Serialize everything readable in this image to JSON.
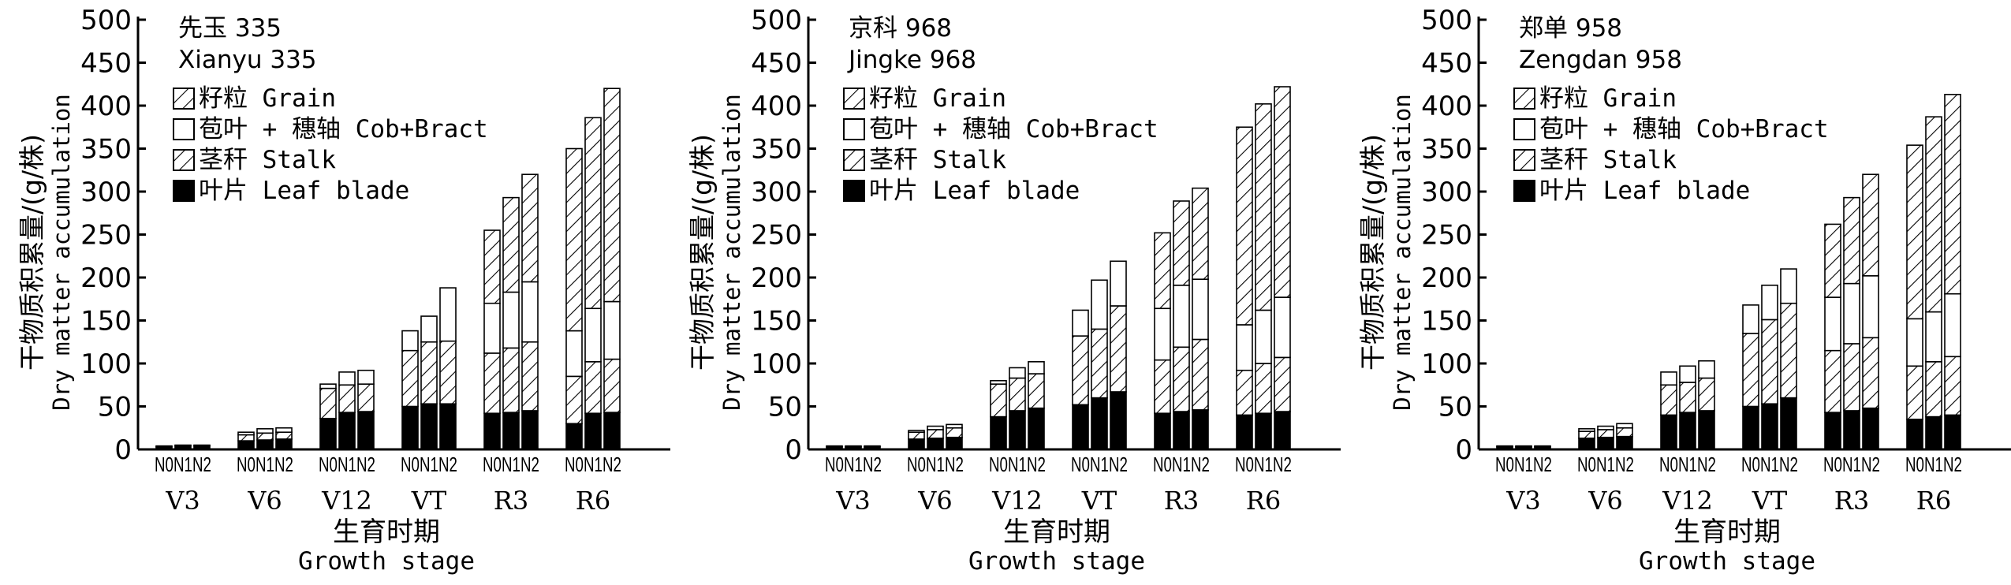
{
  "chart_data": [
    {
      "type": "bar",
      "stacked": true,
      "title_zh": "先玉 335",
      "title_en": "Xianyu 335",
      "ylabel_zh": "干物质积累量/(g/株)",
      "ylabel_en": "Dry matter accumulation",
      "xlabel_zh": "生育时期",
      "xlabel_en": "Growth stage",
      "ylim": [
        0,
        500
      ],
      "yticks": [
        0,
        50,
        100,
        150,
        200,
        250,
        300,
        350,
        400,
        450,
        500
      ],
      "stages": [
        "V3",
        "V6",
        "V12",
        "VT",
        "R3",
        "R6"
      ],
      "treatments": [
        "N0",
        "N1",
        "N2"
      ],
      "legend": [
        {
          "key": "grain",
          "label": "籽粒 Grain",
          "pattern": "hatch"
        },
        {
          "key": "cob",
          "label": "苞叶 + 穗轴 Cob+Bract",
          "pattern": "white"
        },
        {
          "key": "stalk",
          "label": "茎秆 Stalk",
          "pattern": "hatch"
        },
        {
          "key": "leaf",
          "label": "叶片 Leaf blade",
          "pattern": "black"
        }
      ],
      "series": [
        {
          "name": "叶片 Leaf blade",
          "key": "leaf",
          "values": [
            [
              3,
              4,
              4
            ],
            [
              10,
              11,
              12
            ],
            [
              36,
              43,
              44
            ],
            [
              50,
              53,
              53
            ],
            [
              42,
              43,
              45
            ],
            [
              30,
              42,
              43
            ]
          ]
        },
        {
          "name": "茎秆 Stalk",
          "key": "stalk",
          "values": [
            [
              1,
              1,
              1
            ],
            [
              7,
              8,
              8
            ],
            [
              35,
              32,
              32
            ],
            [
              65,
              72,
              73
            ],
            [
              70,
              75,
              80
            ],
            [
              55,
              60,
              62
            ]
          ]
        },
        {
          "name": "苞叶 + 穗轴 Cob+Bract",
          "key": "cob",
          "values": [
            [
              0,
              0,
              0
            ],
            [
              3,
              5,
              5
            ],
            [
              5,
              15,
              16
            ],
            [
              23,
              30,
              62
            ],
            [
              58,
              65,
              70
            ],
            [
              53,
              62,
              67
            ]
          ]
        },
        {
          "name": "籽粒 Grain",
          "key": "grain",
          "values": [
            [
              0,
              0,
              0
            ],
            [
              0,
              0,
              0
            ],
            [
              0,
              0,
              0
            ],
            [
              0,
              0,
              0
            ],
            [
              85,
              110,
              125
            ],
            [
              212,
              222,
              248
            ]
          ]
        }
      ]
    },
    {
      "type": "bar",
      "stacked": true,
      "title_zh": "京科 968",
      "title_en": "Jingke 968",
      "ylabel_zh": "干物质积累量/(g/株)",
      "ylabel_en": "Dry matter accumulation",
      "xlabel_zh": "生育时期",
      "xlabel_en": "Growth stage",
      "ylim": [
        0,
        500
      ],
      "yticks": [
        0,
        50,
        100,
        150,
        200,
        250,
        300,
        350,
        400,
        450,
        500
      ],
      "stages": [
        "V3",
        "V6",
        "V12",
        "VT",
        "R3",
        "R6"
      ],
      "treatments": [
        "N0",
        "N1",
        "N2"
      ],
      "legend": [
        {
          "key": "grain",
          "label": "籽粒 Grain",
          "pattern": "hatch"
        },
        {
          "key": "cob",
          "label": "苞叶 + 穗轴 Cob+Bract",
          "pattern": "white"
        },
        {
          "key": "stalk",
          "label": "茎秆 Stalk",
          "pattern": "hatch"
        },
        {
          "key": "leaf",
          "label": "叶片 Leaf blade",
          "pattern": "black"
        }
      ],
      "series": [
        {
          "name": "叶片 Leaf blade",
          "key": "leaf",
          "values": [
            [
              3,
              3,
              3
            ],
            [
              12,
              13,
              14
            ],
            [
              38,
              45,
              48
            ],
            [
              52,
              60,
              67
            ],
            [
              42,
              44,
              46
            ],
            [
              40,
              42,
              44
            ]
          ]
        },
        {
          "name": "茎秆 Stalk",
          "key": "stalk",
          "values": [
            [
              1,
              1,
              1
            ],
            [
              8,
              10,
              11
            ],
            [
              38,
              38,
              40
            ],
            [
              80,
              80,
              100
            ],
            [
              62,
              75,
              82
            ],
            [
              52,
              58,
              63
            ]
          ]
        },
        {
          "name": "苞叶 + 穗轴 Cob+Bract",
          "key": "cob",
          "values": [
            [
              0,
              0,
              0
            ],
            [
              2,
              4,
              4
            ],
            [
              4,
              12,
              14
            ],
            [
              30,
              57,
              52
            ],
            [
              60,
              72,
              70
            ],
            [
              53,
              62,
              70
            ]
          ]
        },
        {
          "name": "籽粒 Grain",
          "key": "grain",
          "values": [
            [
              0,
              0,
              0
            ],
            [
              0,
              0,
              0
            ],
            [
              0,
              0,
              0
            ],
            [
              0,
              0,
              0
            ],
            [
              88,
              98,
              106
            ],
            [
              230,
              240,
              245
            ]
          ]
        }
      ]
    },
    {
      "type": "bar",
      "stacked": true,
      "title_zh": "郑单 958",
      "title_en": "Zengdan 958",
      "ylabel_zh": "干物质积累量/(g/株)",
      "ylabel_en": "Dry matter accumulation",
      "xlabel_zh": "生育时期",
      "xlabel_en": "Growth stage",
      "ylim": [
        0,
        500
      ],
      "yticks": [
        0,
        50,
        100,
        150,
        200,
        250,
        300,
        350,
        400,
        450,
        500
      ],
      "stages": [
        "V3",
        "V6",
        "V12",
        "VT",
        "R3",
        "R6"
      ],
      "treatments": [
        "N0",
        "N1",
        "N2"
      ],
      "legend": [
        {
          "key": "grain",
          "label": "籽粒 Grain",
          "pattern": "hatch"
        },
        {
          "key": "cob",
          "label": "苞叶 + 穗轴 Cob+Bract",
          "pattern": "white"
        },
        {
          "key": "stalk",
          "label": "茎秆 Stalk",
          "pattern": "hatch"
        },
        {
          "key": "leaf",
          "label": "叶片 Leaf blade",
          "pattern": "black"
        }
      ],
      "series": [
        {
          "name": "叶片 Leaf blade",
          "key": "leaf",
          "values": [
            [
              3,
              3,
              3
            ],
            [
              13,
              14,
              15
            ],
            [
              40,
              43,
              45
            ],
            [
              50,
              53,
              60
            ],
            [
              43,
              45,
              48
            ],
            [
              35,
              38,
              40
            ]
          ]
        },
        {
          "name": "茎秆 Stalk",
          "key": "stalk",
          "values": [
            [
              1,
              1,
              1
            ],
            [
              8,
              9,
              10
            ],
            [
              35,
              35,
              38
            ],
            [
              85,
              98,
              110
            ],
            [
              72,
              78,
              82
            ],
            [
              62,
              64,
              68
            ]
          ]
        },
        {
          "name": "苞叶 + 穗轴 Cob+Bract",
          "key": "cob",
          "values": [
            [
              0,
              0,
              0
            ],
            [
              3,
              4,
              5
            ],
            [
              15,
              19,
              20
            ],
            [
              33,
              40,
              40
            ],
            [
              62,
              70,
              72
            ],
            [
              55,
              58,
              73
            ]
          ]
        },
        {
          "name": "籽粒 Grain",
          "key": "grain",
          "values": [
            [
              0,
              0,
              0
            ],
            [
              0,
              0,
              0
            ],
            [
              0,
              0,
              0
            ],
            [
              0,
              0,
              0
            ],
            [
              85,
              100,
              118
            ],
            [
              202,
              227,
              232
            ]
          ]
        }
      ]
    }
  ]
}
